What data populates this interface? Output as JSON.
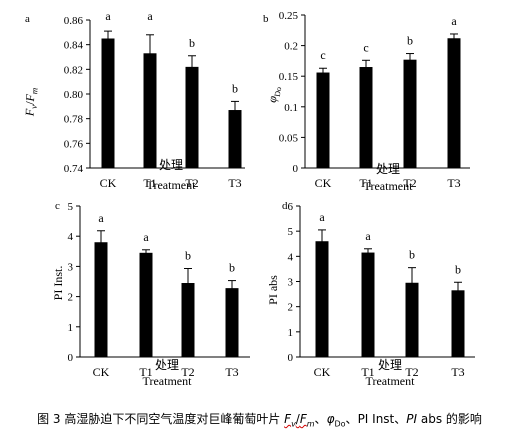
{
  "caption": {
    "prefix": "图 3 高湿胁迫下不同空气温度对巨峰葡萄叶片 ",
    "m1_a": "F",
    "m1_v": "v",
    "m1_slash": "/",
    "m1_b": "F",
    "m1_m": "m",
    "sep1": "、",
    "m2_phi": "φ",
    "m2_sub": "Do",
    "sep2": "、",
    "m3": "PI Inst",
    "sep3": "、",
    "m4_pi": "PI",
    "m4_abs": " abs",
    "suffix": " 的影响"
  },
  "chart_data": [
    {
      "type": "bar",
      "panel_mark": "a",
      "categories": [
        "CK",
        "T1",
        "T2",
        "T3"
      ],
      "values": [
        0.845,
        0.833,
        0.822,
        0.787
      ],
      "errors": [
        0.006,
        0.015,
        0.009,
        0.007
      ],
      "sig_letters": [
        "a",
        "a",
        "b",
        "b"
      ],
      "ylabel": "Fv/Fm",
      "xlabel_cn": "处理",
      "xlabel_en": "Treatment",
      "ylim": [
        0.74,
        0.86
      ],
      "yticks": [
        "0.74",
        "0.76",
        "0.78",
        "0.80",
        "0.82",
        "0.84",
        "0.86"
      ]
    },
    {
      "type": "bar",
      "panel_mark": "b",
      "categories": [
        "CK",
        "T1",
        "T2",
        "T3"
      ],
      "values": [
        0.156,
        0.165,
        0.177,
        0.212
      ],
      "errors": [
        0.007,
        0.011,
        0.01,
        0.007
      ],
      "sig_letters": [
        "c",
        "c",
        "b",
        "a"
      ],
      "ylabel": "φDo",
      "xlabel_cn": "处理",
      "xlabel_en": "Treatment",
      "ylim": [
        0,
        0.25
      ],
      "yticks": [
        "0",
        "0.05",
        "0.1",
        "0.15",
        "0.2",
        "0.25"
      ]
    },
    {
      "type": "bar",
      "panel_mark": "c",
      "categories": [
        "CK",
        "T1",
        "T2",
        "T3"
      ],
      "values": [
        3.8,
        3.45,
        2.45,
        2.28
      ],
      "errors": [
        0.38,
        0.1,
        0.48,
        0.25
      ],
      "sig_letters": [
        "a",
        "a",
        "b",
        "b"
      ],
      "ylabel": "PI Inst.",
      "xlabel_cn": "处理",
      "xlabel_en": "Treatment",
      "ylim": [
        0,
        5
      ],
      "yticks": [
        "0",
        "1",
        "2",
        "3",
        "4",
        "5"
      ]
    },
    {
      "type": "bar",
      "panel_mark": "d",
      "categories": [
        "CK",
        "T1",
        "T2",
        "T3"
      ],
      "values": [
        4.6,
        4.15,
        2.95,
        2.65
      ],
      "errors": [
        0.45,
        0.15,
        0.6,
        0.32
      ],
      "sig_letters": [
        "a",
        "a",
        "b",
        "b"
      ],
      "ylabel": "PI abs",
      "xlabel_cn": "处理",
      "xlabel_en": "Treatment",
      "ylim": [
        0,
        6
      ],
      "yticks": [
        "0",
        "1",
        "2",
        "3",
        "4",
        "5",
        "6"
      ]
    }
  ]
}
